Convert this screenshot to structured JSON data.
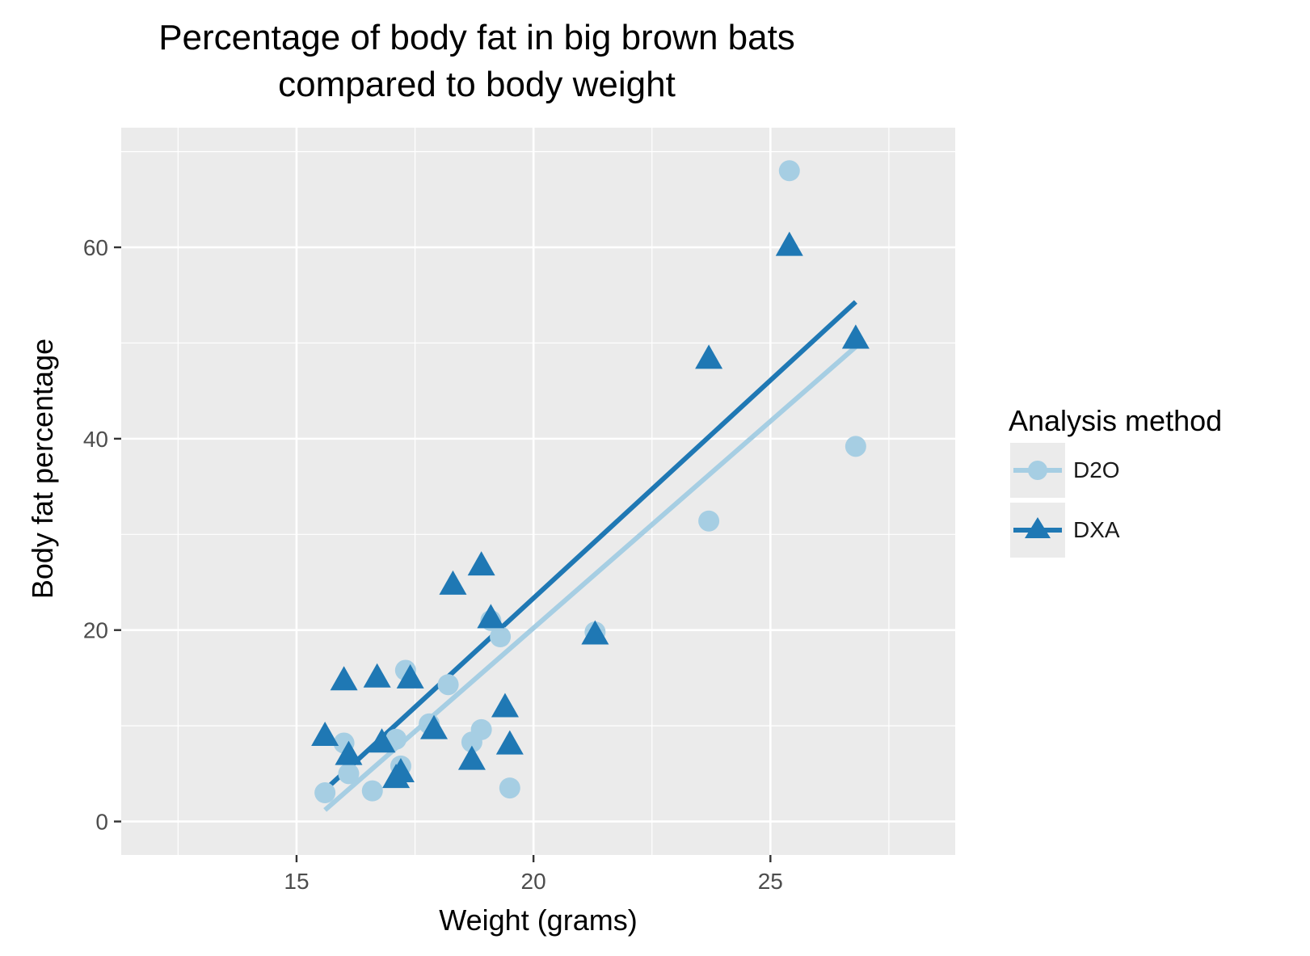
{
  "chart_data": {
    "type": "scatter",
    "title": "Percentage of body fat in big brown bats\ncompared to body weight",
    "title_lines": [
      "Percentage of body fat in big brown bats",
      "compared to body weight"
    ],
    "xlabel": "Weight (grams)",
    "ylabel": "Body fat percentage",
    "xlim": [
      11.3,
      28.9
    ],
    "ylim": [
      -3.5,
      72.5
    ],
    "x_ticks": [
      15,
      20,
      25
    ],
    "y_ticks": [
      0,
      20,
      40,
      60
    ],
    "grid": true,
    "legend": {
      "title": "Analysis method",
      "position": "right"
    },
    "series": [
      {
        "name": "D2O",
        "marker": "circle",
        "color": "#a6cee3",
        "points": [
          [
            15.6,
            3.0
          ],
          [
            16.0,
            8.2
          ],
          [
            16.1,
            5.0
          ],
          [
            16.6,
            3.2
          ],
          [
            17.1,
            8.6
          ],
          [
            17.2,
            5.8
          ],
          [
            17.3,
            15.8
          ],
          [
            17.8,
            10.2
          ],
          [
            18.2,
            14.3
          ],
          [
            18.7,
            8.3
          ],
          [
            18.9,
            9.6
          ],
          [
            19.1,
            21.0
          ],
          [
            19.3,
            19.3
          ],
          [
            19.5,
            3.5
          ],
          [
            21.3,
            19.8
          ],
          [
            23.7,
            31.4
          ],
          [
            25.4,
            68.0
          ],
          [
            26.8,
            39.2
          ]
        ],
        "fit": {
          "x0": 15.6,
          "y0": 1.2,
          "x1": 26.8,
          "y1": 49.6
        }
      },
      {
        "name": "DXA",
        "marker": "triangle",
        "color": "#1f78b4",
        "points": [
          [
            15.6,
            9.0
          ],
          [
            16.0,
            14.8
          ],
          [
            16.1,
            7.0
          ],
          [
            16.7,
            15.1
          ],
          [
            16.8,
            8.3
          ],
          [
            17.1,
            4.6
          ],
          [
            17.2,
            5.2
          ],
          [
            17.4,
            15.0
          ],
          [
            17.9,
            9.7
          ],
          [
            18.3,
            24.8
          ],
          [
            18.7,
            6.5
          ],
          [
            18.9,
            26.8
          ],
          [
            19.1,
            21.3
          ],
          [
            19.4,
            12.0
          ],
          [
            19.5,
            8.1
          ],
          [
            21.3,
            19.6
          ],
          [
            23.7,
            48.4
          ],
          [
            25.4,
            60.2
          ],
          [
            26.8,
            50.5
          ]
        ],
        "fit": {
          "x0": 15.6,
          "y0": 3.3,
          "x1": 26.8,
          "y1": 54.3
        }
      }
    ]
  }
}
